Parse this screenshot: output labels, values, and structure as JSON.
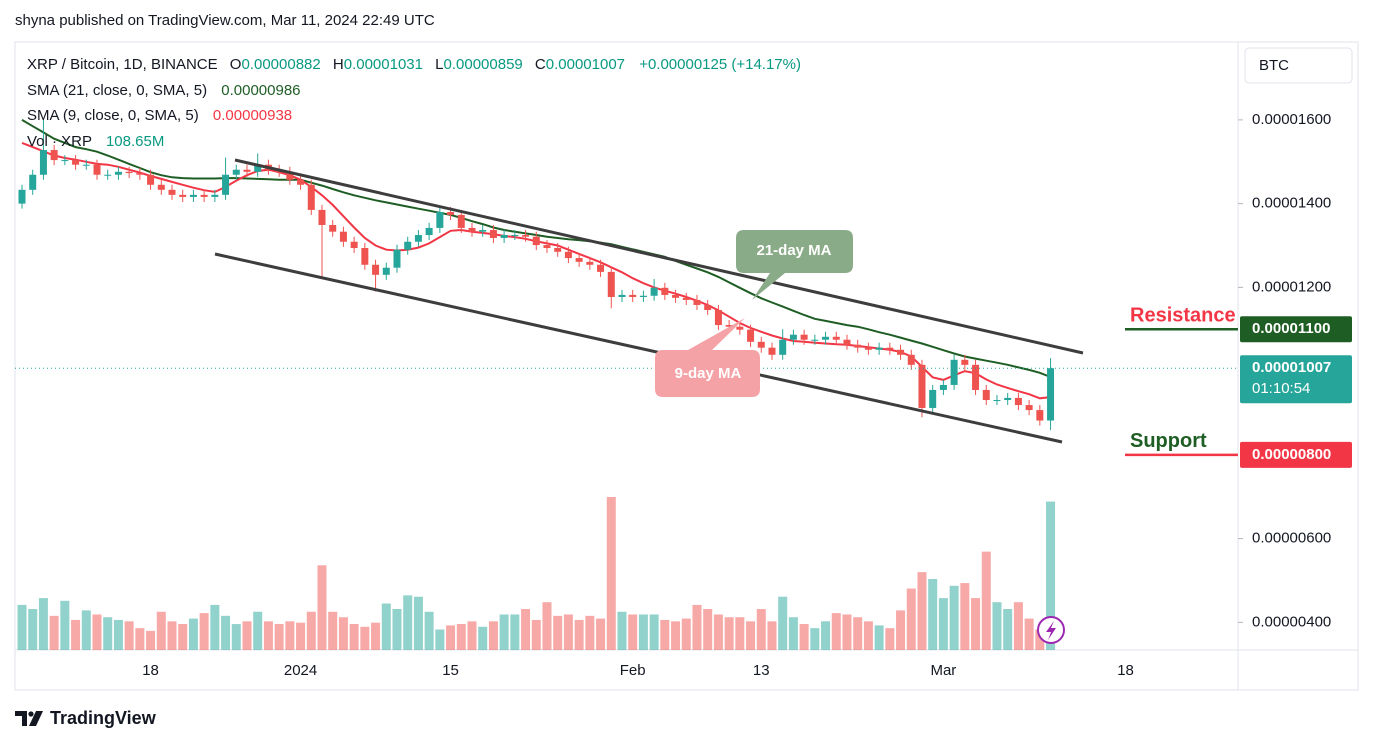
{
  "header": {
    "attribution": "shyna published on TradingView.com, Mar 11, 2024 22:49 UTC",
    "brand": "TradingView"
  },
  "chart_data": {
    "type": "candlestick",
    "symbol": "XRP / Bitcoin, 1D, BINANCE",
    "ohlc_legend": [
      {
        "label": "O",
        "value": "0.00000882"
      },
      {
        "label": "H",
        "value": "0.00001031"
      },
      {
        "label": "L",
        "value": "0.00000859"
      },
      {
        "label": "C",
        "value": "0.00001007"
      }
    ],
    "change": "+0.00000125 (+14.17%)",
    "currency": "BTC",
    "up_color": "#26a69a",
    "down_color": "#ef5350",
    "categories": [
      null,
      null,
      null,
      null,
      null,
      null,
      null,
      null,
      null,
      null,
      null,
      null,
      "18",
      null,
      null,
      null,
      null,
      null,
      null,
      null,
      null,
      null,
      null,
      null,
      null,
      null,
      "2024",
      null,
      null,
      null,
      null,
      null,
      null,
      null,
      null,
      null,
      null,
      null,
      null,
      null,
      "15",
      null,
      null,
      null,
      null,
      null,
      null,
      null,
      null,
      null,
      null,
      null,
      null,
      null,
      null,
      null,
      null,
      "Feb",
      null,
      null,
      null,
      null,
      null,
      null,
      null,
      null,
      null,
      null,
      null,
      "13",
      null,
      null,
      null,
      null,
      null,
      null,
      null,
      null,
      null,
      null,
      null,
      null,
      null,
      null,
      null,
      null,
      "Mar",
      null,
      null,
      null,
      null,
      null,
      null,
      null,
      null,
      null,
      null,
      null,
      null,
      null,
      null,
      null,
      null,
      "18"
    ],
    "open": [
      1.4e-05,
      1.433e-05,
      1.469e-05,
      1.528e-05,
      1.504e-05,
      1.504e-05,
      1.493e-05,
      1.493e-05,
      1.469e-05,
      1.469e-05,
      1.476e-05,
      1.473e-05,
      1.469e-05,
      1.445e-05,
      1.433e-05,
      1.421e-05,
      1.416e-05,
      1.421e-05,
      1.416e-05,
      1.421e-05,
      1.469e-05,
      1.481e-05,
      1.476e-05,
      1.493e-05,
      1.481e-05,
      1.476e-05,
      1.457e-05,
      1.445e-05,
      1.385e-05,
      1.349e-05,
      1.333e-05,
      1.309e-05,
      1.294e-05,
      1.254e-05,
      1.23e-05,
      1.247e-05,
      1.29e-05,
      1.309e-05,
      1.325e-05,
      1.342e-05,
      1.38e-05,
      1.373e-05,
      1.342e-05,
      1.333e-05,
      1.337e-05,
      1.318e-05,
      1.325e-05,
      1.325e-05,
      1.321e-05,
      1.301e-05,
      1.294e-05,
      1.285e-05,
      1.27e-05,
      1.261e-05,
      1.254e-05,
      1.237e-05,
      1.177e-05,
      1.182e-05,
      1.177e-05,
      1.18e-05,
      1.199e-05,
      1.182e-05,
      1.175e-05,
      1.17e-05,
      1.158e-05,
      1.146e-05,
      1.11e-05,
      1.106e-05,
      1.099e-05,
      1.07e-05,
      1.056e-05,
      1.039e-05,
      1.075e-05,
      1.087e-05,
      1.075e-05,
      1.075e-05,
      1.082e-05,
      1.075e-05,
      1.063e-05,
      1.056e-05,
      1.051e-05,
      1.056e-05,
      1.051e-05,
      1.039e-05,
      1.015e-05,
      9.12e-06,
      9.55e-06,
      9.67e-06,
      1.027e-05,
      1.015e-05,
      9.55e-06,
      9.31e-06,
      9.31e-06,
      9.36e-06,
      9.19e-06,
      9.07e-06,
      8.82e-06,
      null,
      null,
      null,
      null,
      null,
      null,
      null
    ],
    "high": [
      1.445e-05,
      1.481e-05,
      1.6e-05,
      1.54e-05,
      1.516e-05,
      1.516e-05,
      1.505e-05,
      1.505e-05,
      1.481e-05,
      1.488e-05,
      1.488e-05,
      1.485e-05,
      1.481e-05,
      1.457e-05,
      1.445e-05,
      1.433e-05,
      1.433e-05,
      1.433e-05,
      1.433e-05,
      1.51e-05,
      1.493e-05,
      1.493e-05,
      1.52e-05,
      1.505e-05,
      1.493e-05,
      1.488e-05,
      1.469e-05,
      1.457e-05,
      1.397e-05,
      1.361e-05,
      1.345e-05,
      1.321e-05,
      1.306e-05,
      1.266e-05,
      1.259e-05,
      1.302e-05,
      1.321e-05,
      1.337e-05,
      1.354e-05,
      1.395e-05,
      1.392e-05,
      1.385e-05,
      1.354e-05,
      1.349e-05,
      1.349e-05,
      1.337e-05,
      1.337e-05,
      1.337e-05,
      1.333e-05,
      1.313e-05,
      1.306e-05,
      1.297e-05,
      1.282e-05,
      1.273e-05,
      1.266e-05,
      1.249e-05,
      1.194e-05,
      1.194e-05,
      1.192e-05,
      1.22e-05,
      1.211e-05,
      1.194e-05,
      1.187e-05,
      1.182e-05,
      1.17e-05,
      1.158e-05,
      1.122e-05,
      1.118e-05,
      1.111e-05,
      1.082e-05,
      1.068e-05,
      1.1e-05,
      1.099e-05,
      1.099e-05,
      1.087e-05,
      1.094e-05,
      1.094e-05,
      1.087e-05,
      1.075e-05,
      1.068e-05,
      1.068e-05,
      1.068e-05,
      1.063e-05,
      1.051e-05,
      1.027e-05,
      9.67e-06,
      9.79e-06,
      1.039e-05,
      1.039e-05,
      1.027e-05,
      9.67e-06,
      9.43e-06,
      9.48e-06,
      9.48e-06,
      9.31e-06,
      9.19e-06,
      1.031e-05,
      null,
      null,
      null,
      null,
      null,
      null,
      null
    ],
    "low": [
      1.388e-05,
      1.421e-05,
      1.457e-05,
      1.492e-05,
      1.492e-05,
      1.481e-05,
      1.481e-05,
      1.457e-05,
      1.457e-05,
      1.457e-05,
      1.461e-05,
      1.457e-05,
      1.433e-05,
      1.421e-05,
      1.409e-05,
      1.404e-05,
      1.404e-05,
      1.404e-05,
      1.404e-05,
      1.409e-05,
      1.457e-05,
      1.464e-05,
      1.464e-05,
      1.469e-05,
      1.464e-05,
      1.445e-05,
      1.433e-05,
      1.373e-05,
      1.22e-05,
      1.321e-05,
      1.297e-05,
      1.282e-05,
      1.242e-05,
      1.19e-05,
      1.218e-05,
      1.235e-05,
      1.278e-05,
      1.297e-05,
      1.313e-05,
      1.33e-05,
      1.361e-05,
      1.33e-05,
      1.321e-05,
      1.321e-05,
      1.306e-05,
      1.306e-05,
      1.313e-05,
      1.309e-05,
      1.289e-05,
      1.282e-05,
      1.273e-05,
      1.258e-05,
      1.249e-05,
      1.242e-05,
      1.225e-05,
      1.15e-05,
      1.165e-05,
      1.165e-05,
      1.165e-05,
      1.168e-05,
      1.17e-05,
      1.163e-05,
      1.158e-05,
      1.146e-05,
      1.134e-05,
      1.098e-05,
      1.094e-05,
      1.087e-05,
      1.058e-05,
      1.044e-05,
      1.027e-05,
      1.027e-05,
      1.063e-05,
      1.063e-05,
      1.063e-05,
      1.063e-05,
      1.063e-05,
      1.051e-05,
      1.044e-05,
      1.039e-05,
      1.039e-05,
      1.039e-05,
      1.027e-05,
      1.003e-05,
      8.9e-06,
      9e-06,
      9.43e-06,
      9.55e-06,
      1.003e-05,
      9.43e-06,
      9.19e-06,
      9.19e-06,
      9.19e-06,
      9.07e-06,
      8.95e-06,
      8.7e-06,
      8.59e-06,
      null,
      null,
      null,
      null,
      null,
      null,
      null
    ],
    "close": [
      1.433e-05,
      1.469e-05,
      1.528e-05,
      1.504e-05,
      1.504e-05,
      1.493e-05,
      1.493e-05,
      1.469e-05,
      1.469e-05,
      1.476e-05,
      1.473e-05,
      1.469e-05,
      1.445e-05,
      1.433e-05,
      1.421e-05,
      1.416e-05,
      1.421e-05,
      1.416e-05,
      1.421e-05,
      1.469e-05,
      1.481e-05,
      1.476e-05,
      1.493e-05,
      1.481e-05,
      1.476e-05,
      1.457e-05,
      1.445e-05,
      1.385e-05,
      1.349e-05,
      1.333e-05,
      1.309e-05,
      1.294e-05,
      1.254e-05,
      1.23e-05,
      1.247e-05,
      1.29e-05,
      1.309e-05,
      1.325e-05,
      1.342e-05,
      1.38e-05,
      1.373e-05,
      1.342e-05,
      1.333e-05,
      1.337e-05,
      1.318e-05,
      1.325e-05,
      1.325e-05,
      1.321e-05,
      1.301e-05,
      1.294e-05,
      1.285e-05,
      1.27e-05,
      1.261e-05,
      1.254e-05,
      1.237e-05,
      1.177e-05,
      1.182e-05,
      1.177e-05,
      1.18e-05,
      1.199e-05,
      1.182e-05,
      1.175e-05,
      1.17e-05,
      1.158e-05,
      1.146e-05,
      1.11e-05,
      1.106e-05,
      1.099e-05,
      1.07e-05,
      1.056e-05,
      1.039e-05,
      1.075e-05,
      1.087e-05,
      1.075e-05,
      1.075e-05,
      1.082e-05,
      1.075e-05,
      1.063e-05,
      1.056e-05,
      1.051e-05,
      1.056e-05,
      1.051e-05,
      1.039e-05,
      1.015e-05,
      9.12e-06,
      9.55e-06,
      9.67e-06,
      1.027e-05,
      1.015e-05,
      9.55e-06,
      9.31e-06,
      9.31e-06,
      9.36e-06,
      9.19e-06,
      9.07e-06,
      8.82e-06,
      1.007e-05,
      null,
      null,
      null,
      null,
      null,
      null,
      null
    ],
    "volume": {
      "name": "Vol · XRP",
      "value_label": "108.65M",
      "values": [
        33,
        30,
        38,
        25,
        36,
        22,
        29,
        26,
        24,
        22,
        21,
        16,
        14,
        28,
        21,
        19,
        23,
        27,
        33,
        25,
        19,
        21,
        28,
        21,
        19,
        21,
        20,
        28,
        62,
        28,
        24,
        19,
        17,
        20,
        34,
        30,
        40,
        39,
        28,
        15,
        18,
        19,
        21,
        17,
        21,
        26,
        26,
        30,
        22,
        35,
        25,
        26,
        22,
        25,
        23,
        112,
        28,
        26,
        26,
        26,
        22,
        21,
        23,
        33,
        30,
        26,
        24,
        24,
        21,
        30,
        21,
        39,
        24,
        19,
        16,
        21,
        27,
        26,
        24,
        21,
        18,
        16,
        29,
        45,
        57,
        52,
        38,
        47,
        49,
        38,
        72,
        35,
        30,
        35,
        23,
        15,
        108.65,
        null,
        null,
        null,
        null,
        null,
        null,
        null
      ]
    },
    "moving_averages": [
      {
        "name": "SMA (21, close, 0, SMA, 5)",
        "color": "#1e5e24",
        "value_label": "0.00000986",
        "values": [
          1.6e-05,
          1.585e-05,
          1.57e-05,
          1.555e-05,
          1.545e-05,
          1.535e-05,
          1.53e-05,
          1.524e-05,
          1.515e-05,
          1.505e-05,
          1.495e-05,
          1.485e-05,
          1.475e-05,
          1.468e-05,
          1.463e-05,
          1.461e-05,
          1.46e-05,
          1.46e-05,
          1.46e-05,
          1.461e-05,
          1.461e-05,
          1.46e-05,
          1.459e-05,
          1.458e-05,
          1.457e-05,
          1.457e-05,
          1.457e-05,
          1.45e-05,
          1.443e-05,
          1.435e-05,
          1.427e-05,
          1.42e-05,
          1.414e-05,
          1.408e-05,
          1.403e-05,
          1.398e-05,
          1.393e-05,
          1.388e-05,
          1.383e-05,
          1.378e-05,
          1.373e-05,
          1.366e-05,
          1.358e-05,
          1.351e-05,
          1.343e-05,
          1.337e-05,
          1.333e-05,
          1.329e-05,
          1.325e-05,
          1.321e-05,
          1.318e-05,
          1.315e-05,
          1.313e-05,
          1.31e-05,
          1.307e-05,
          1.303e-05,
          1.297e-05,
          1.291e-05,
          1.285e-05,
          1.279e-05,
          1.273e-05,
          1.263e-05,
          1.254e-05,
          1.245e-05,
          1.236e-05,
          1.225e-05,
          1.212e-05,
          1.199e-05,
          1.186e-05,
          1.174e-05,
          1.164e-05,
          1.154e-05,
          1.144e-05,
          1.134e-05,
          1.125e-05,
          1.12e-05,
          1.115e-05,
          1.11e-05,
          1.106e-05,
          1.1e-05,
          1.093e-05,
          1.087e-05,
          1.08e-05,
          1.073e-05,
          1.066e-05,
          1.058e-05,
          1.05e-05,
          1.042e-05,
          1.035e-05,
          1.03e-05,
          1.025e-05,
          1.02e-05,
          1.015e-05,
          1.009e-05,
          1.003e-05,
          9.96e-06,
          9.86e-06,
          null,
          null,
          null,
          null,
          null,
          null,
          null
        ]
      },
      {
        "name": "SMA (9, close, 0, SMA, 5)",
        "color": "#f23645",
        "value_label": "0.00000938",
        "values": [
          1.545e-05,
          1.535e-05,
          1.525e-05,
          1.515e-05,
          1.509e-05,
          1.505e-05,
          1.5e-05,
          1.495e-05,
          1.493e-05,
          1.488e-05,
          1.481e-05,
          1.474e-05,
          1.466e-05,
          1.459e-05,
          1.452e-05,
          1.445e-05,
          1.438e-05,
          1.432e-05,
          1.428e-05,
          1.44e-05,
          1.455e-05,
          1.468e-05,
          1.478e-05,
          1.481e-05,
          1.475e-05,
          1.468e-05,
          1.457e-05,
          1.44e-05,
          1.42e-05,
          1.397e-05,
          1.37e-05,
          1.343e-05,
          1.318e-05,
          1.3e-05,
          1.29e-05,
          1.288e-05,
          1.29e-05,
          1.295e-05,
          1.305e-05,
          1.32e-05,
          1.335e-05,
          1.337e-05,
          1.333e-05,
          1.33e-05,
          1.327e-05,
          1.323e-05,
          1.32e-05,
          1.316e-05,
          1.31e-05,
          1.305e-05,
          1.3e-05,
          1.29e-05,
          1.28e-05,
          1.27e-05,
          1.26e-05,
          1.248e-05,
          1.236e-05,
          1.222e-05,
          1.21e-05,
          1.2e-05,
          1.192e-05,
          1.185e-05,
          1.177e-05,
          1.168e-05,
          1.158e-05,
          1.145e-05,
          1.13e-05,
          1.115e-05,
          1.103e-05,
          1.094e-05,
          1.085e-05,
          1.078e-05,
          1.072e-05,
          1.07e-05,
          1.068e-05,
          1.066e-05,
          1.064e-05,
          1.063e-05,
          1.06e-05,
          1.057e-05,
          1.054e-05,
          1.051e-05,
          1.046e-05,
          1.035e-05,
          1.01e-05,
          9.85e-06,
          9.79e-06,
          9.9e-06,
          1e-05,
          9.95e-06,
          9.8e-06,
          9.68e-06,
          9.6e-06,
          9.52e-06,
          9.45e-06,
          9.35e-06,
          9.38e-06,
          null,
          null,
          null,
          null,
          null,
          null,
          null
        ]
      }
    ],
    "ylim": [
      3.34e-06,
      1.786e-05
    ],
    "yticks": [
      {
        "value": 4e-06,
        "label": "0.00000400"
      },
      {
        "value": 6e-06,
        "label": "0.00000600"
      },
      {
        "value": 1.2e-05,
        "label": "0.00001200"
      },
      {
        "value": 1.4e-05,
        "label": "0.00001400"
      },
      {
        "value": 1.6e-05,
        "label": "0.00001600"
      }
    ],
    "levels": [
      {
        "name": "Resistance",
        "value": 1.1e-05,
        "label": "0.00001100",
        "color": "#1e5e24",
        "text_color": "#f23645"
      },
      {
        "name": "Support",
        "value": 8e-06,
        "label": "0.00000800",
        "color": "#f23645",
        "text_color": "#1e5e24"
      }
    ],
    "last_price": {
      "value": 1.007e-05,
      "label": "0.00001007",
      "countdown": "01:10:54"
    },
    "annotations": [
      "21-day MA",
      "9-day MA"
    ]
  }
}
